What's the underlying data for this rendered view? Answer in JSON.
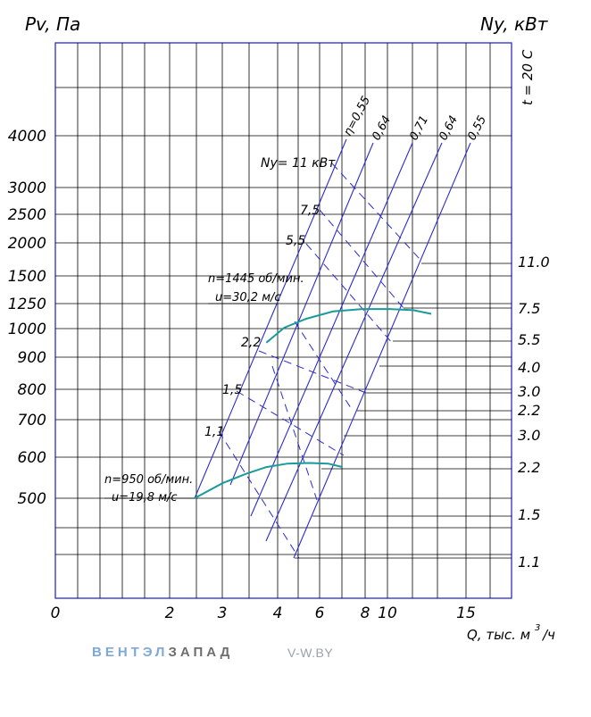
{
  "chart_data": {
    "type": "line",
    "ylabel": "Pv, Па",
    "y2label": "Ny, кВт",
    "xlabel": "Q, тыс. м",
    "xlabel_exp": "3",
    "xlabel_suffix": "/ч",
    "temperature": "t = 20 С",
    "y_scale": "log",
    "x_scale": "log",
    "grid": true,
    "y_ticks": [
      "4000",
      "3000",
      "2500",
      "2000",
      "1500",
      "1250",
      "1000",
      "900",
      "800",
      "700",
      "600",
      "500"
    ],
    "x_ticks": [
      "0",
      "2",
      "3",
      "4",
      "6",
      "8",
      "10",
      "15"
    ],
    "efficiency_labels": [
      "η=0,55",
      "0,64",
      "0,71",
      "0,64",
      "0,55"
    ],
    "power_labels": [
      "Ny= 11 кВт",
      "7,5",
      "5,5",
      "2,2",
      "1,5",
      "1,1"
    ],
    "right_power_ticks": [
      "11.0",
      "7.5",
      "5.5",
      "4.0",
      "3.0",
      "2.2",
      "3.0",
      "2.2",
      "1.5",
      "1.1"
    ],
    "series": [
      {
        "name": "n=1445 об/мин. u=30,2 м/с",
        "label_line1": "n=1445 об/мин.",
        "label_line2": "u=30,2 м/с",
        "color": "#1a9b9b",
        "x": [
          4.0,
          4.5,
          5.2,
          6.2,
          7.5,
          9.0,
          10.5,
          11.8
        ],
        "y": [
          1220,
          1330,
          1400,
          1460,
          1480,
          1480,
          1470,
          1440
        ]
      },
      {
        "name": "n=950 об/мин. u=19,8 м/с",
        "label_line1": "n=950 об/мин.",
        "label_line2": "u=19,8 м/с",
        "color": "#1a9b9b",
        "x": [
          2.5,
          3.0,
          3.5,
          4.0,
          4.6,
          5.3,
          6.0,
          6.6
        ],
        "y": [
          500,
          545,
          575,
          598,
          610,
          612,
          610,
          598
        ]
      }
    ]
  },
  "brand": {
    "part1": "ВЕНТЭЛ",
    "part2": "ЗАПАД",
    "site": "V-W.BY"
  }
}
